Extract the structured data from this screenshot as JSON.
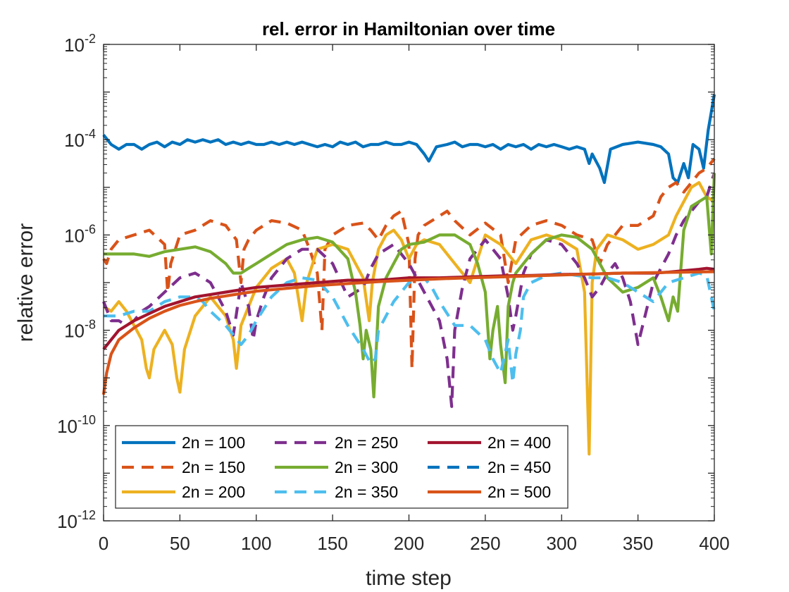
{
  "chart_data": {
    "type": "line",
    "title": "rel. error in Hamiltonian over time",
    "xlabel": "time step",
    "ylabel": "relative error",
    "xlim": [
      0,
      400
    ],
    "ylim_exponent": [
      -12,
      -2
    ],
    "yscale": "log",
    "grid": false,
    "legend_position": "bottom-left",
    "x_ticks": [
      0,
      50,
      100,
      150,
      200,
      250,
      300,
      350,
      400
    ],
    "x_tick_labels": [
      "0",
      "50",
      "100",
      "150",
      "200",
      "250",
      "300",
      "350",
      "400"
    ],
    "y_ticks": [
      {
        "base": "10",
        "exp": "-2",
        "value": -2
      },
      {
        "base": "10",
        "exp": "-4",
        "value": -4
      },
      {
        "base": "10",
        "exp": "-6",
        "value": -6
      },
      {
        "base": "10",
        "exp": "-8",
        "value": -8
      },
      {
        "base": "10",
        "exp": "-10",
        "value": -10
      },
      {
        "base": "10",
        "exp": "-12",
        "value": -12
      }
    ],
    "series": [
      {
        "name": "2n = 100",
        "color": "#0072BD",
        "dash": "solid",
        "x": [
          0,
          5,
          10,
          15,
          20,
          25,
          30,
          35,
          40,
          45,
          50,
          55,
          60,
          65,
          70,
          75,
          80,
          85,
          90,
          95,
          100,
          105,
          110,
          115,
          120,
          125,
          130,
          135,
          140,
          145,
          150,
          155,
          160,
          165,
          170,
          175,
          180,
          185,
          190,
          195,
          200,
          205,
          210,
          213,
          218,
          225,
          230,
          235,
          240,
          245,
          250,
          255,
          260,
          265,
          270,
          275,
          280,
          285,
          290,
          295,
          300,
          305,
          310,
          315,
          318,
          320,
          325,
          328,
          332,
          340,
          350,
          360,
          365,
          370,
          373,
          376,
          380,
          383,
          386,
          390,
          393,
          396,
          400
        ],
        "log10y": [
          -3.9,
          -4.1,
          -4.2,
          -4.1,
          -4.1,
          -4.2,
          -4.1,
          -4.05,
          -4.15,
          -4.05,
          -4.1,
          -4.0,
          -4.05,
          -4.0,
          -4.05,
          -4.0,
          -4.1,
          -4.05,
          -4.1,
          -4.05,
          -4.1,
          -4.1,
          -4.05,
          -4.1,
          -4.05,
          -4.1,
          -4.05,
          -4.1,
          -4.15,
          -4.1,
          -4.15,
          -4.05,
          -4.1,
          -4.05,
          -4.15,
          -4.1,
          -4.1,
          -4.05,
          -4.1,
          -4.1,
          -4.05,
          -4.1,
          -4.3,
          -4.45,
          -4.15,
          -4.1,
          -4.05,
          -4.15,
          -4.1,
          -4.1,
          -4.15,
          -4.1,
          -4.2,
          -4.1,
          -4.15,
          -4.1,
          -4.2,
          -4.1,
          -4.15,
          -4.1,
          -4.15,
          -4.2,
          -4.15,
          -4.2,
          -4.5,
          -4.3,
          -4.6,
          -4.9,
          -4.2,
          -4.1,
          -4.05,
          -4.1,
          -4.15,
          -4.3,
          -4.8,
          -4.9,
          -4.5,
          -4.8,
          -4.1,
          -4.2,
          -4.6,
          -3.8,
          -3.05
        ]
      },
      {
        "name": "2n = 150",
        "color": "#D95319",
        "dash": "dashed",
        "x": [
          0,
          2,
          5,
          10,
          20,
          30,
          40,
          42,
          44,
          50,
          60,
          70,
          80,
          87,
          90,
          92,
          95,
          100,
          110,
          120,
          130,
          135,
          140,
          143,
          145,
          150,
          160,
          170,
          175,
          180,
          185,
          190,
          195,
          200,
          202,
          204,
          206,
          210,
          220,
          225,
          230,
          240,
          250,
          260,
          265,
          270,
          280,
          290,
          300,
          310,
          320,
          325,
          330,
          340,
          350,
          360,
          365,
          370,
          375,
          380,
          385,
          390,
          395,
          400
        ],
        "log10y": [
          -6.5,
          -6.6,
          -6.3,
          -6.1,
          -6.0,
          -5.9,
          -6.2,
          -7.2,
          -6.6,
          -6.0,
          -5.9,
          -5.7,
          -5.8,
          -6.1,
          -7.0,
          -6.3,
          -6.1,
          -5.9,
          -5.7,
          -5.75,
          -5.9,
          -6.3,
          -6.8,
          -8.0,
          -6.3,
          -6.0,
          -5.8,
          -5.75,
          -5.9,
          -6.1,
          -5.8,
          -5.6,
          -5.5,
          -6.2,
          -8.8,
          -6.5,
          -6.0,
          -5.8,
          -5.6,
          -5.5,
          -5.7,
          -6.0,
          -5.75,
          -6.0,
          -7.0,
          -6.1,
          -5.8,
          -5.7,
          -5.8,
          -6.0,
          -6.1,
          -6.6,
          -6.2,
          -5.8,
          -5.8,
          -5.6,
          -5.2,
          -5.0,
          -4.9,
          -5.1,
          -4.9,
          -4.7,
          -4.6,
          -4.4
        ]
      },
      {
        "name": "2n = 200",
        "color": "#EDB120",
        "dash": "solid",
        "x": [
          0,
          5,
          10,
          15,
          20,
          25,
          28,
          30,
          33,
          40,
          45,
          48,
          50,
          53,
          60,
          70,
          80,
          85,
          87,
          90,
          100,
          110,
          120,
          125,
          128,
          130,
          133,
          140,
          150,
          160,
          170,
          174,
          176,
          180,
          185,
          190,
          195,
          200,
          205,
          210,
          220,
          230,
          240,
          245,
          250,
          260,
          270,
          280,
          290,
          300,
          310,
          315,
          318,
          320,
          323,
          330,
          340,
          350,
          360,
          370,
          375,
          380,
          385,
          390,
          395,
          400
        ],
        "log10y": [
          -7.5,
          -7.6,
          -7.4,
          -7.6,
          -7.9,
          -8.2,
          -8.8,
          -9.0,
          -8.4,
          -8.0,
          -8.3,
          -9.0,
          -9.3,
          -8.4,
          -7.7,
          -7.3,
          -7.7,
          -8.2,
          -8.8,
          -7.9,
          -7.1,
          -6.7,
          -6.5,
          -6.8,
          -7.4,
          -7.8,
          -7.0,
          -6.3,
          -6.2,
          -6.3,
          -6.9,
          -7.8,
          -7.0,
          -6.3,
          -6.0,
          -5.9,
          -6.1,
          -6.5,
          -6.2,
          -6.1,
          -6.2,
          -6.6,
          -7.0,
          -6.5,
          -6.0,
          -6.2,
          -6.6,
          -6.1,
          -6.0,
          -6.1,
          -6.3,
          -7.2,
          -10.6,
          -7.0,
          -6.3,
          -6.0,
          -6.1,
          -6.3,
          -6.2,
          -6.0,
          -5.6,
          -5.3,
          -5.0,
          -4.9,
          -5.2,
          -5.3
        ]
      },
      {
        "name": "2n = 250",
        "color": "#7E2F8E",
        "dash": "dashed",
        "x": [
          0,
          5,
          10,
          15,
          20,
          25,
          30,
          40,
          50,
          60,
          70,
          75,
          80,
          85,
          90,
          95,
          98,
          100,
          105,
          110,
          120,
          130,
          140,
          150,
          160,
          170,
          175,
          180,
          190,
          200,
          210,
          220,
          225,
          228,
          230,
          235,
          240,
          250,
          260,
          265,
          268,
          270,
          275,
          280,
          290,
          300,
          310,
          315,
          320,
          325,
          330,
          335,
          340,
          345,
          350,
          360,
          370,
          375,
          380,
          385,
          390,
          395,
          400
        ],
        "log10y": [
          -7.4,
          -7.8,
          -7.8,
          -7.9,
          -7.8,
          -7.6,
          -7.5,
          -7.2,
          -6.9,
          -6.8,
          -7.0,
          -7.3,
          -7.6,
          -8.1,
          -7.0,
          -7.5,
          -8.2,
          -7.8,
          -7.3,
          -6.9,
          -6.5,
          -6.3,
          -6.3,
          -6.6,
          -7.3,
          -7.1,
          -6.7,
          -6.4,
          -6.2,
          -6.6,
          -7.2,
          -7.8,
          -8.6,
          -9.6,
          -8.0,
          -7.1,
          -6.5,
          -6.1,
          -6.5,
          -7.3,
          -8.0,
          -7.7,
          -6.8,
          -6.4,
          -6.1,
          -6.2,
          -6.6,
          -6.9,
          -7.3,
          -7.1,
          -6.8,
          -6.6,
          -6.9,
          -7.4,
          -8.3,
          -7.0,
          -6.4,
          -6.0,
          -5.7,
          -5.5,
          -5.3,
          -5.2,
          -4.7
        ]
      },
      {
        "name": "2n = 300",
        "color": "#77AC30",
        "dash": "solid",
        "x": [
          0,
          10,
          20,
          30,
          40,
          50,
          60,
          70,
          80,
          85,
          90,
          95,
          100,
          110,
          120,
          130,
          140,
          150,
          160,
          165,
          168,
          170,
          172,
          175,
          177,
          180,
          185,
          190,
          195,
          200,
          210,
          220,
          230,
          240,
          245,
          250,
          253,
          255,
          258,
          260,
          263,
          265,
          268,
          270,
          280,
          290,
          300,
          310,
          320,
          330,
          340,
          350,
          360,
          365,
          370,
          373,
          376,
          380,
          385,
          390,
          395,
          398,
          400
        ],
        "log10y": [
          -6.4,
          -6.4,
          -6.4,
          -6.45,
          -6.35,
          -6.3,
          -6.25,
          -6.35,
          -6.6,
          -6.8,
          -6.8,
          -6.7,
          -6.6,
          -6.4,
          -6.2,
          -6.1,
          -6.05,
          -6.15,
          -6.5,
          -7.2,
          -7.9,
          -8.6,
          -8.0,
          -8.4,
          -9.4,
          -7.5,
          -6.9,
          -6.6,
          -6.3,
          -6.2,
          -6.15,
          -6.0,
          -6.0,
          -6.2,
          -6.6,
          -7.2,
          -8.6,
          -8.0,
          -7.5,
          -8.3,
          -9.1,
          -7.5,
          -7.0,
          -6.8,
          -6.4,
          -6.1,
          -6.0,
          -6.05,
          -6.3,
          -6.9,
          -7.2,
          -7.1,
          -6.9,
          -7.3,
          -7.8,
          -7.3,
          -7.6,
          -5.9,
          -5.4,
          -5.3,
          -5.2,
          -6.4,
          -4.7
        ]
      },
      {
        "name": "2n = 350",
        "color": "#4DBEEE",
        "dash": "dashed",
        "x": [
          0,
          10,
          20,
          30,
          40,
          50,
          60,
          65,
          70,
          80,
          90,
          95,
          100,
          110,
          120,
          130,
          140,
          150,
          160,
          170,
          175,
          178,
          180,
          190,
          200,
          210,
          215,
          220,
          230,
          240,
          250,
          255,
          260,
          265,
          268,
          270,
          273,
          275,
          280,
          290,
          300,
          310,
          320,
          330,
          340,
          350,
          360,
          370,
          380,
          390,
          395,
          400
        ],
        "log10y": [
          -7.7,
          -7.7,
          -7.6,
          -7.6,
          -7.4,
          -7.3,
          -7.3,
          -7.4,
          -7.6,
          -7.9,
          -8.3,
          -8.1,
          -7.8,
          -7.3,
          -7.0,
          -6.9,
          -6.95,
          -7.3,
          -7.9,
          -8.4,
          -8.7,
          -8.6,
          -8.0,
          -7.4,
          -7.0,
          -6.9,
          -7.1,
          -7.4,
          -7.9,
          -7.9,
          -8.2,
          -8.6,
          -8.9,
          -8.2,
          -9.1,
          -8.5,
          -8.0,
          -7.3,
          -7.0,
          -6.85,
          -6.8,
          -6.85,
          -6.9,
          -6.9,
          -7.0,
          -7.2,
          -7.4,
          -7.0,
          -6.9,
          -6.8,
          -6.85,
          -7.6
        ]
      },
      {
        "name": "2n = 400",
        "color": "#A2142F",
        "dash": "solid",
        "x": [
          0,
          5,
          10,
          20,
          30,
          40,
          50,
          60,
          70,
          80,
          90,
          100,
          120,
          140,
          160,
          180,
          200,
          220,
          240,
          260,
          280,
          300,
          320,
          340,
          350,
          360,
          370,
          380,
          390,
          395,
          400
        ],
        "log10y": [
          -8.4,
          -8.2,
          -8.0,
          -7.8,
          -7.65,
          -7.5,
          -7.4,
          -7.3,
          -7.25,
          -7.2,
          -7.15,
          -7.1,
          -7.05,
          -7.0,
          -6.95,
          -6.95,
          -6.9,
          -6.9,
          -6.88,
          -6.86,
          -6.85,
          -6.83,
          -6.82,
          -6.8,
          -6.8,
          -6.8,
          -6.78,
          -6.75,
          -6.72,
          -6.7,
          -6.72
        ]
      },
      {
        "name": "2n = 450",
        "color": "#0072BD",
        "dash": "dashed",
        "x": [],
        "log10y": []
      },
      {
        "name": "2n = 500",
        "color": "#D95319",
        "dash": "solid",
        "x": [
          0,
          2,
          5,
          10,
          20,
          30,
          40,
          50,
          60,
          70,
          80,
          90,
          100,
          120,
          140,
          160,
          180,
          200,
          220,
          240,
          260,
          280,
          300,
          320,
          340,
          360,
          380,
          400
        ],
        "log10y": [
          -9.35,
          -8.9,
          -8.5,
          -8.2,
          -7.95,
          -7.75,
          -7.6,
          -7.48,
          -7.4,
          -7.33,
          -7.28,
          -7.23,
          -7.18,
          -7.12,
          -7.06,
          -7.02,
          -6.98,
          -6.95,
          -6.92,
          -6.9,
          -6.88,
          -6.86,
          -6.84,
          -6.82,
          -6.8,
          -6.79,
          -6.78,
          -6.77
        ]
      }
    ]
  }
}
